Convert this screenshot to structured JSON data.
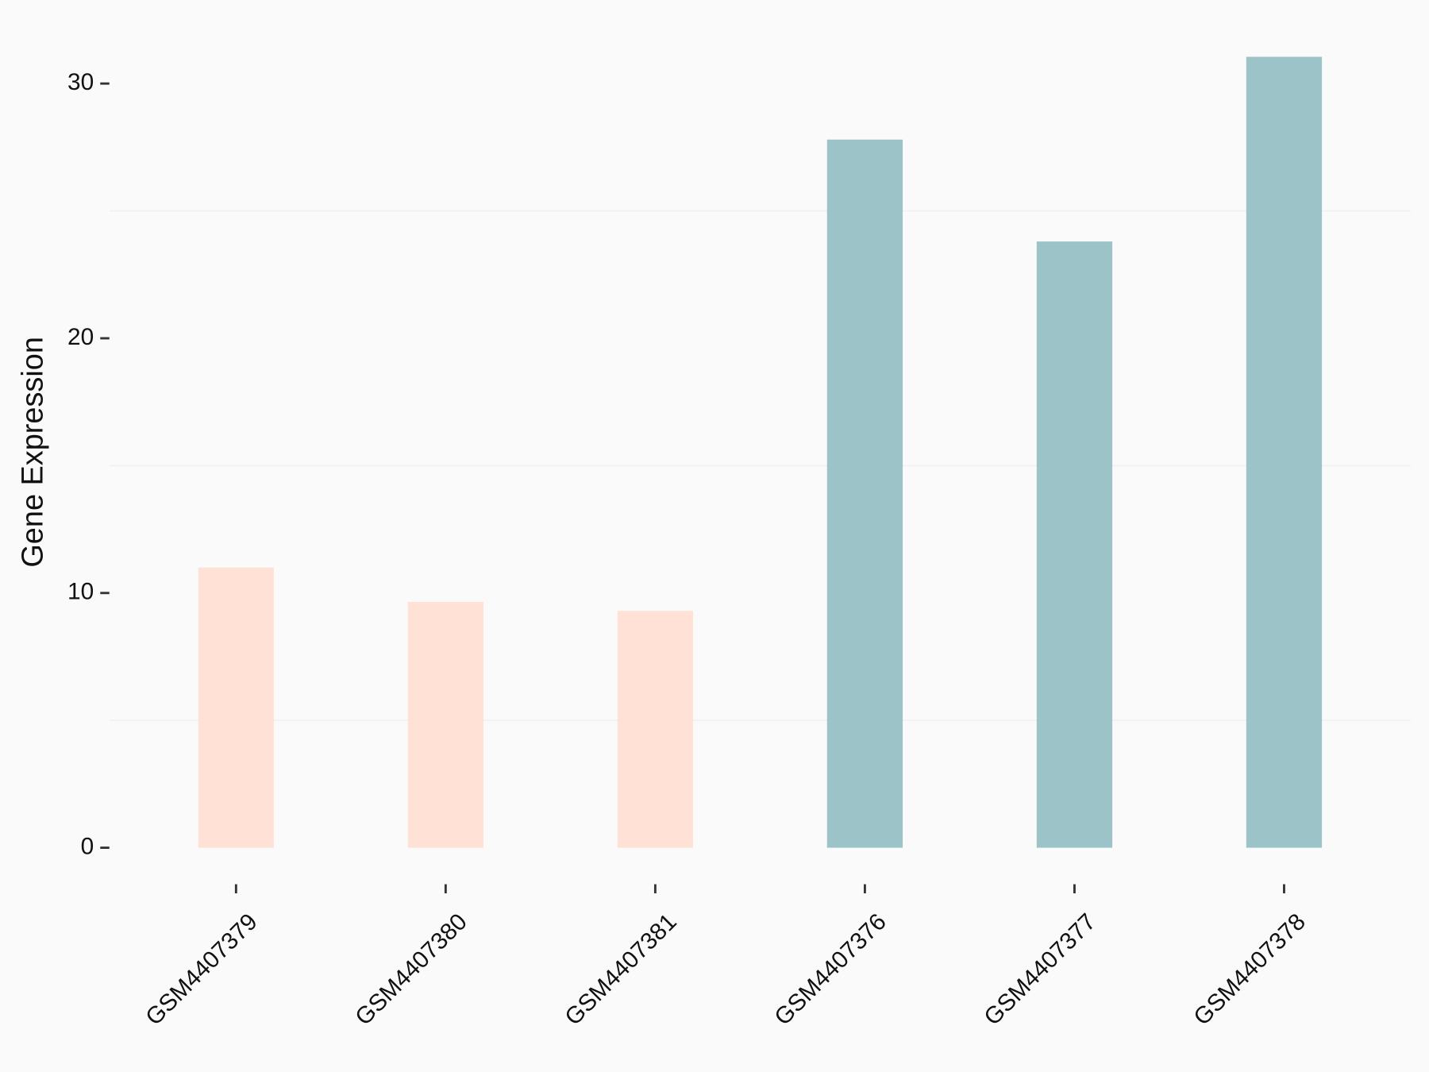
{
  "chart_data": {
    "type": "bar",
    "y_label": "Gene Expression",
    "categories": [
      "GSM4407379",
      "GSM4407380",
      "GSM4407381",
      "GSM4407376",
      "GSM4407377",
      "GSM4407378"
    ],
    "values": [
      11.0,
      9.65,
      9.3,
      27.8,
      23.8,
      31.05
    ],
    "colors": [
      "#ffe1d6",
      "#ffe1d6",
      "#ffe1d6",
      "#9cc4c8",
      "#9cc4c8",
      "#9cc4c8"
    ],
    "ylim": [
      -1.2,
      32.6
    ],
    "yticks": [
      0,
      10,
      20,
      30
    ],
    "minor_grid": [
      5,
      15,
      25
    ]
  }
}
